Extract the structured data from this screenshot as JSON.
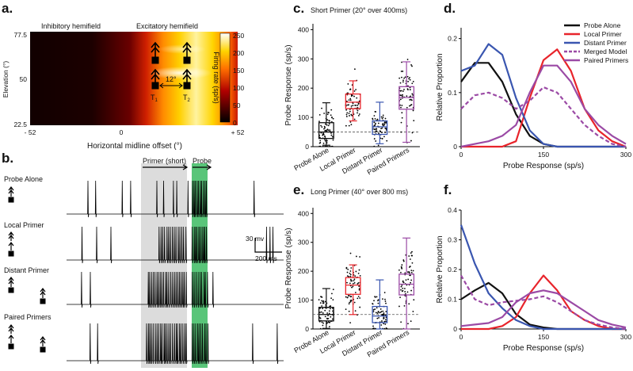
{
  "panels": {
    "a": {
      "label": "a.",
      "left_title": "Inhibitory hemifield",
      "right_title": "Excitatory hemifield",
      "ylabel": "Elevation (°)",
      "yticks": [
        "77.5",
        "50",
        "22.5"
      ],
      "xlabel": "Horizontal midline offset (°)",
      "xticks": [
        "- 52",
        "0",
        "+ 52"
      ],
      "colorbar_label": "Firing rate (sp/s)",
      "colorbar_ticks": [
        "250",
        "200",
        "150",
        "100",
        "50",
        "0"
      ],
      "angle_label": "12°",
      "target1": "T",
      "target1_sub": "1",
      "target2": "T",
      "target2_sub": "2"
    },
    "b": {
      "label": "b.",
      "rows": [
        "Probe Alone",
        "Local Primer",
        "Distant Primer",
        "Paired Primers"
      ],
      "primer_label": "Primer (short)",
      "probe_label": "Probe",
      "scale_mv": "30 mv",
      "scale_ms": "200 ms"
    },
    "c": {
      "label": "c.",
      "title": "Short Primer (20° over 400ms)"
    },
    "d": {
      "label": "d."
    },
    "e": {
      "label": "e.",
      "title": "Long Primer (40° over 800 ms)"
    },
    "f": {
      "label": "f."
    }
  },
  "colors": {
    "probe_alone": "#111111",
    "local_primer": "#e8242b",
    "distant_primer": "#3a56b0",
    "merged_model": "#9b4aa5",
    "paired_primers": "#9b4aa5",
    "probe_highlight": "#22b14c",
    "primer_highlight": "#dcdcdc"
  },
  "chart_data": [
    {
      "id": "c",
      "type": "box",
      "title": "Short Primer (20° over 400ms)",
      "ylabel": "Probe Response (sp/s)",
      "ylim": [
        0,
        420
      ],
      "yticks": [
        0,
        100,
        200,
        300,
        400
      ],
      "baseline": 50,
      "categories": [
        "Probe Alone",
        "Local Primer",
        "Distant Primer",
        "Paired Primers"
      ],
      "boxes": [
        {
          "name": "Probe Alone",
          "whisker_low": 5,
          "q1": 28,
          "median": 50,
          "q3": 82,
          "whisker_high": 150
        },
        {
          "name": "Local Primer",
          "whisker_low": 88,
          "q1": 130,
          "median": 152,
          "q3": 180,
          "whisker_high": 225
        },
        {
          "name": "Distant Primer",
          "whisker_low": 10,
          "q1": 42,
          "median": 68,
          "q3": 88,
          "whisker_high": 152
        },
        {
          "name": "Paired Primers",
          "whisker_low": 15,
          "q1": 128,
          "median": 168,
          "q3": 205,
          "whisker_high": 290
        }
      ]
    },
    {
      "id": "d",
      "type": "line",
      "xlabel": "Probe Response (sp/s)",
      "ylabel": "Relative Proportion",
      "xlim": [
        0,
        300
      ],
      "ylim": [
        0,
        0.22
      ],
      "xticks": [
        0,
        150,
        300
      ],
      "yticks": [
        0,
        0.1,
        0.2
      ],
      "x": [
        0,
        25,
        50,
        75,
        100,
        125,
        150,
        175,
        200,
        225,
        250,
        275,
        300
      ],
      "series": [
        {
          "name": "Probe Alone",
          "values": [
            0.12,
            0.155,
            0.155,
            0.12,
            0.06,
            0.02,
            0.005,
            0,
            0,
            0,
            0,
            0,
            0
          ]
        },
        {
          "name": "Local Primer",
          "values": [
            0,
            0,
            0,
            0,
            0.01,
            0.09,
            0.16,
            0.18,
            0.14,
            0.07,
            0.03,
            0.01,
            0
          ]
        },
        {
          "name": "Distant Primer",
          "values": [
            0.14,
            0.15,
            0.19,
            0.17,
            0.09,
            0.03,
            0.005,
            0,
            0,
            0,
            0,
            0,
            0
          ]
        },
        {
          "name": "Merged Model",
          "values": [
            0.07,
            0.095,
            0.1,
            0.09,
            0.07,
            0.085,
            0.11,
            0.1,
            0.07,
            0.04,
            0.02,
            0.005,
            0
          ]
        },
        {
          "name": "Paired Primers",
          "values": [
            0,
            0.005,
            0.01,
            0.02,
            0.04,
            0.1,
            0.15,
            0.15,
            0.12,
            0.07,
            0.04,
            0.02,
            0.005
          ]
        }
      ]
    },
    {
      "id": "e",
      "type": "box",
      "title": "Long Primer (40° over 800 ms)",
      "ylabel": "Probe Response (sp/s)",
      "ylim": [
        0,
        420
      ],
      "yticks": [
        0,
        100,
        200,
        300,
        400
      ],
      "baseline": 50,
      "categories": [
        "Probe Alone",
        "Local Primer",
        "Distant Primer",
        "Paired Primers"
      ],
      "boxes": [
        {
          "name": "Probe Alone",
          "whisker_low": 2,
          "q1": 28,
          "median": 50,
          "q3": 75,
          "whisker_high": 140
        },
        {
          "name": "Local Primer",
          "whisker_low": 50,
          "q1": 120,
          "median": 152,
          "q3": 178,
          "whisker_high": 222
        },
        {
          "name": "Distant Primer",
          "whisker_low": 0,
          "q1": 22,
          "median": 45,
          "q3": 78,
          "whisker_high": 170
        },
        {
          "name": "Paired Primers",
          "whisker_low": 0,
          "q1": 118,
          "median": 155,
          "q3": 190,
          "whisker_high": 315
        }
      ]
    },
    {
      "id": "f",
      "type": "line",
      "xlabel": "Probe Response (sp/s)",
      "ylabel": "Relative Proportion",
      "xlim": [
        0,
        300
      ],
      "ylim": [
        0,
        0.4
      ],
      "xticks": [
        0,
        150,
        300
      ],
      "yticks": [
        0,
        0.1,
        0.2,
        0.3,
        0.4
      ],
      "x": [
        0,
        25,
        50,
        75,
        100,
        125,
        150,
        175,
        200,
        225,
        250,
        275,
        300
      ],
      "series": [
        {
          "name": "Probe Alone",
          "values": [
            0.1,
            0.13,
            0.155,
            0.12,
            0.05,
            0.015,
            0.005,
            0,
            0,
            0,
            0,
            0,
            0
          ]
        },
        {
          "name": "Local Primer",
          "values": [
            0,
            0,
            0,
            0.01,
            0.04,
            0.12,
            0.18,
            0.13,
            0.06,
            0.03,
            0.01,
            0,
            0
          ]
        },
        {
          "name": "Distant Primer",
          "values": [
            0.35,
            0.22,
            0.12,
            0.07,
            0.03,
            0.01,
            0,
            0,
            0,
            0,
            0,
            0,
            0
          ]
        },
        {
          "name": "Merged Model",
          "values": [
            0.18,
            0.1,
            0.08,
            0.09,
            0.095,
            0.1,
            0.11,
            0.09,
            0.06,
            0.03,
            0.015,
            0.005,
            0
          ]
        },
        {
          "name": "Paired Primers",
          "values": [
            0.01,
            0.015,
            0.02,
            0.04,
            0.09,
            0.12,
            0.13,
            0.12,
            0.09,
            0.06,
            0.03,
            0.015,
            0.005
          ]
        }
      ]
    }
  ]
}
